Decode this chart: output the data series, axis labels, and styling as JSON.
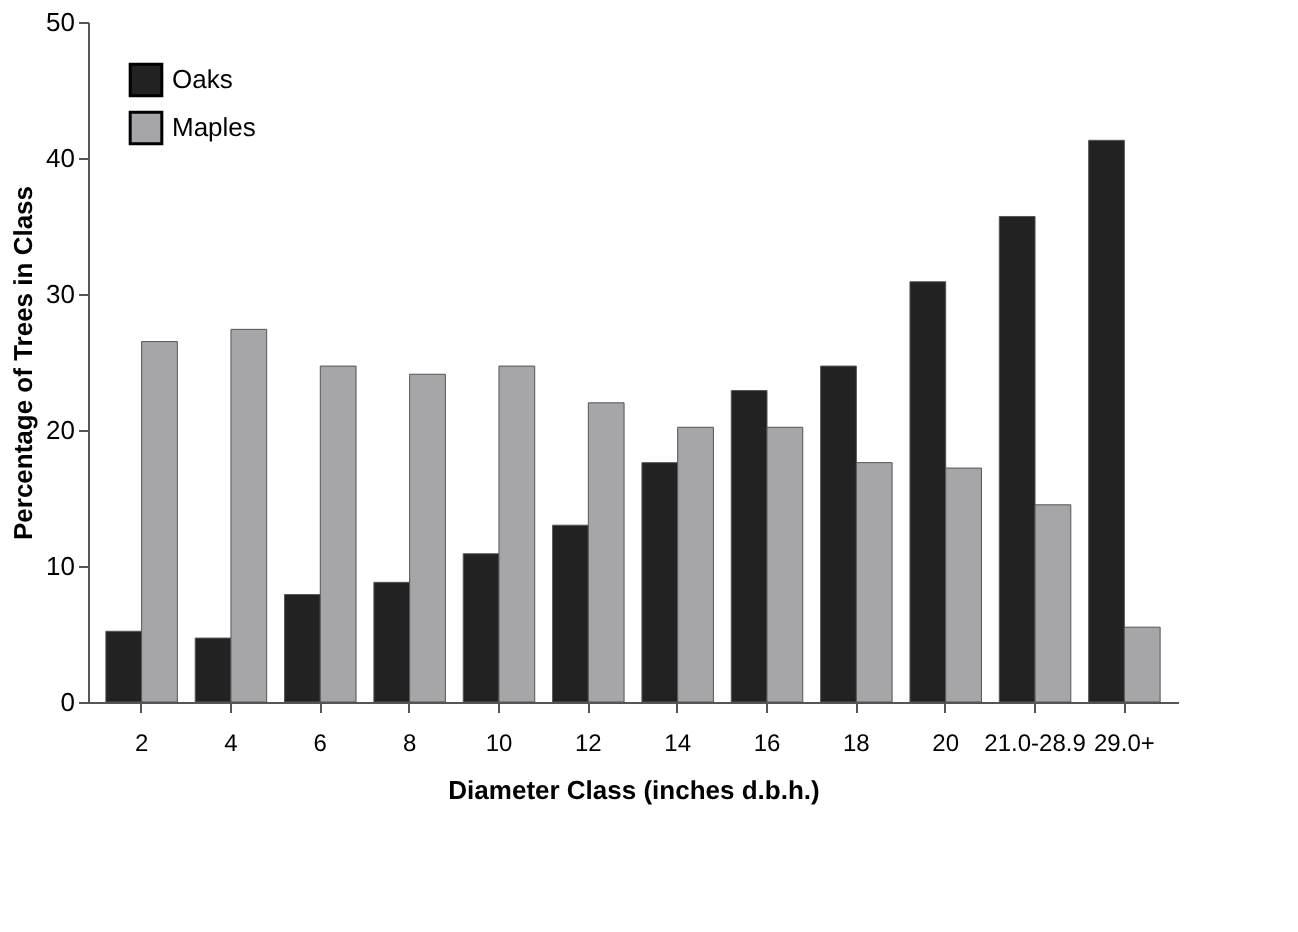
{
  "chart_data": {
    "type": "bar",
    "xlabel": "Diameter Class (inches  d.b.h.)",
    "ylabel": "Percentage of Trees in Class",
    "categories": [
      "2",
      "4",
      "6",
      "8",
      "10",
      "12",
      "14",
      "16",
      "18",
      "20",
      "21.0-28.9",
      "29.0+"
    ],
    "series": [
      {
        "name": "Oaks",
        "color": "#222222",
        "values": [
          5.2,
          4.7,
          7.9,
          8.8,
          10.9,
          13.0,
          17.6,
          22.9,
          24.7,
          30.9,
          35.7,
          41.3
        ]
      },
      {
        "name": "Maples",
        "color": "#a6a6a8",
        "values": [
          26.5,
          27.4,
          24.7,
          24.1,
          24.7,
          22.0,
          20.2,
          20.2,
          17.6,
          17.2,
          14.5,
          5.5
        ]
      }
    ],
    "ylim": [
      0,
      50
    ],
    "yticks": [
      0,
      10,
      20,
      30,
      40,
      50
    ],
    "grid": false,
    "legend": "top left"
  }
}
